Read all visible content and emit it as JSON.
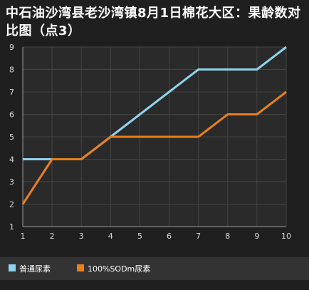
{
  "chart_data": {
    "type": "line",
    "title": "中石油沙湾县老沙湾镇8月1日棉花大区：果龄数对比图（点3）",
    "x": [
      1,
      2,
      3,
      4,
      5,
      6,
      7,
      8,
      9,
      10
    ],
    "xlim": [
      1,
      10
    ],
    "ylim": [
      1,
      9
    ],
    "yticks": [
      1,
      2,
      3,
      4,
      5,
      6,
      7,
      8,
      9
    ],
    "xlabel": "",
    "ylabel": "",
    "grid": true,
    "legend_position": "bottom-left",
    "series": [
      {
        "name": "普通尿素",
        "color": "#8fd3ef",
        "values": [
          4,
          4,
          4,
          5,
          6,
          7,
          8,
          8,
          8,
          9
        ]
      },
      {
        "name": "100%SODm尿素",
        "color": "#e8801e",
        "values": [
          2,
          4,
          4,
          5,
          5,
          5,
          5,
          6,
          6,
          7
        ]
      }
    ]
  },
  "colors": {
    "background": "#1f1f1f",
    "plot_area": "#2a2a2a",
    "grid": "#444444",
    "legend_bar": "#333333"
  }
}
